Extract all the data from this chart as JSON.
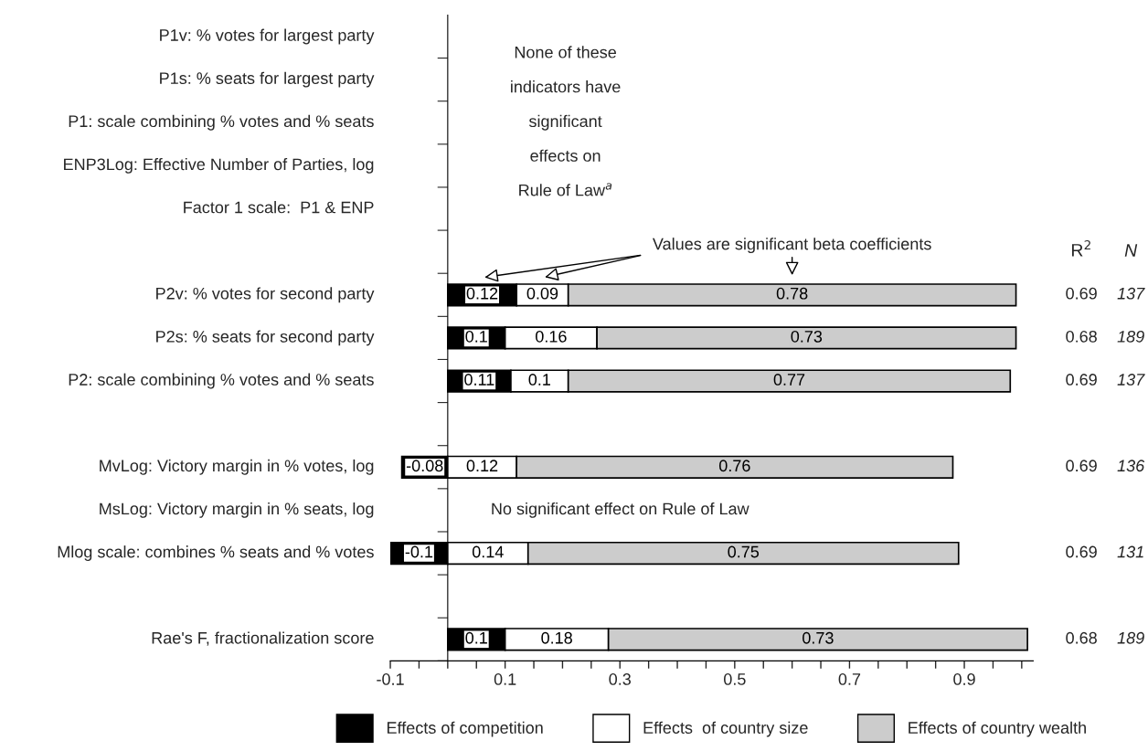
{
  "chart_data": {
    "type": "bar",
    "orientation": "horizontal",
    "stacked": true,
    "data_labels": true,
    "legend": "bottom",
    "categories": [
      "P1v: % votes for largest party",
      "P1s: % seats for largest party",
      "P1: scale combining % votes and % seats",
      "ENP3Log: Effective Number of Parties, log",
      "Factor 1 scale:  P1 & ENP",
      null,
      "P2v: % votes for second party",
      "P2s: % seats for second party",
      "P2: scale combining % votes and % seats",
      null,
      "MvLog: Victory margin in % votes, log",
      "MsLog: Victory margin in % seats, log",
      "Mlog scale: combines % seats and % votes",
      null,
      "Rae's F, fractionalization score"
    ],
    "series": [
      {
        "name": "Effects of competition",
        "color": "#000000",
        "values": [
          null,
          null,
          null,
          null,
          null,
          null,
          0.12,
          0.1,
          0.11,
          null,
          -0.08,
          null,
          -0.1,
          null,
          0.1
        ]
      },
      {
        "name": "Effects  of country size",
        "color": "#ffffff",
        "values": [
          null,
          null,
          null,
          null,
          null,
          null,
          0.09,
          0.16,
          0.1,
          null,
          0.12,
          null,
          0.14,
          null,
          0.18
        ]
      },
      {
        "name": "Effects of country wealth",
        "color": "#cccccc",
        "values": [
          null,
          null,
          null,
          null,
          null,
          null,
          0.78,
          0.73,
          0.77,
          null,
          0.76,
          null,
          0.75,
          null,
          0.73
        ]
      }
    ],
    "xlim": [
      -0.1,
      1.02
    ],
    "xticks": [
      -0.1,
      {
        "value": -0.05,
        "label": null
      },
      {
        "value": 0,
        "label": null
      },
      {
        "value": 0.05,
        "label": null
      },
      0.1,
      {
        "value": 0.15,
        "label": null
      },
      {
        "value": 0.2,
        "label": null
      },
      {
        "value": 0.25,
        "label": null
      },
      0.3,
      {
        "value": 0.35,
        "label": null
      },
      {
        "value": 0.4,
        "label": null
      },
      {
        "value": 0.45,
        "label": null
      },
      0.5,
      {
        "value": 0.55,
        "label": null
      },
      {
        "value": 0.6,
        "label": null
      },
      {
        "value": 0.65,
        "label": null
      },
      0.7,
      {
        "value": 0.75,
        "label": null
      },
      {
        "value": 0.8,
        "label": null
      },
      {
        "value": 0.85,
        "label": null
      },
      0.9,
      {
        "value": 0.95,
        "label": null
      },
      {
        "value": 1.0,
        "label": null
      }
    ],
    "annotations": [
      "None of these\nindicators have\nsignificant\neffects on\nRule of Law$^{a}$",
      "Values are significant beta coefficients",
      "R$^{2}$",
      "N",
      "No significant effect on Rule of Law",
      "0.69",
      "137",
      "0.68",
      "189",
      "0.69",
      "137",
      "0.69",
      "136",
      "0.69",
      "131",
      "0.68",
      "189"
    ]
  }
}
